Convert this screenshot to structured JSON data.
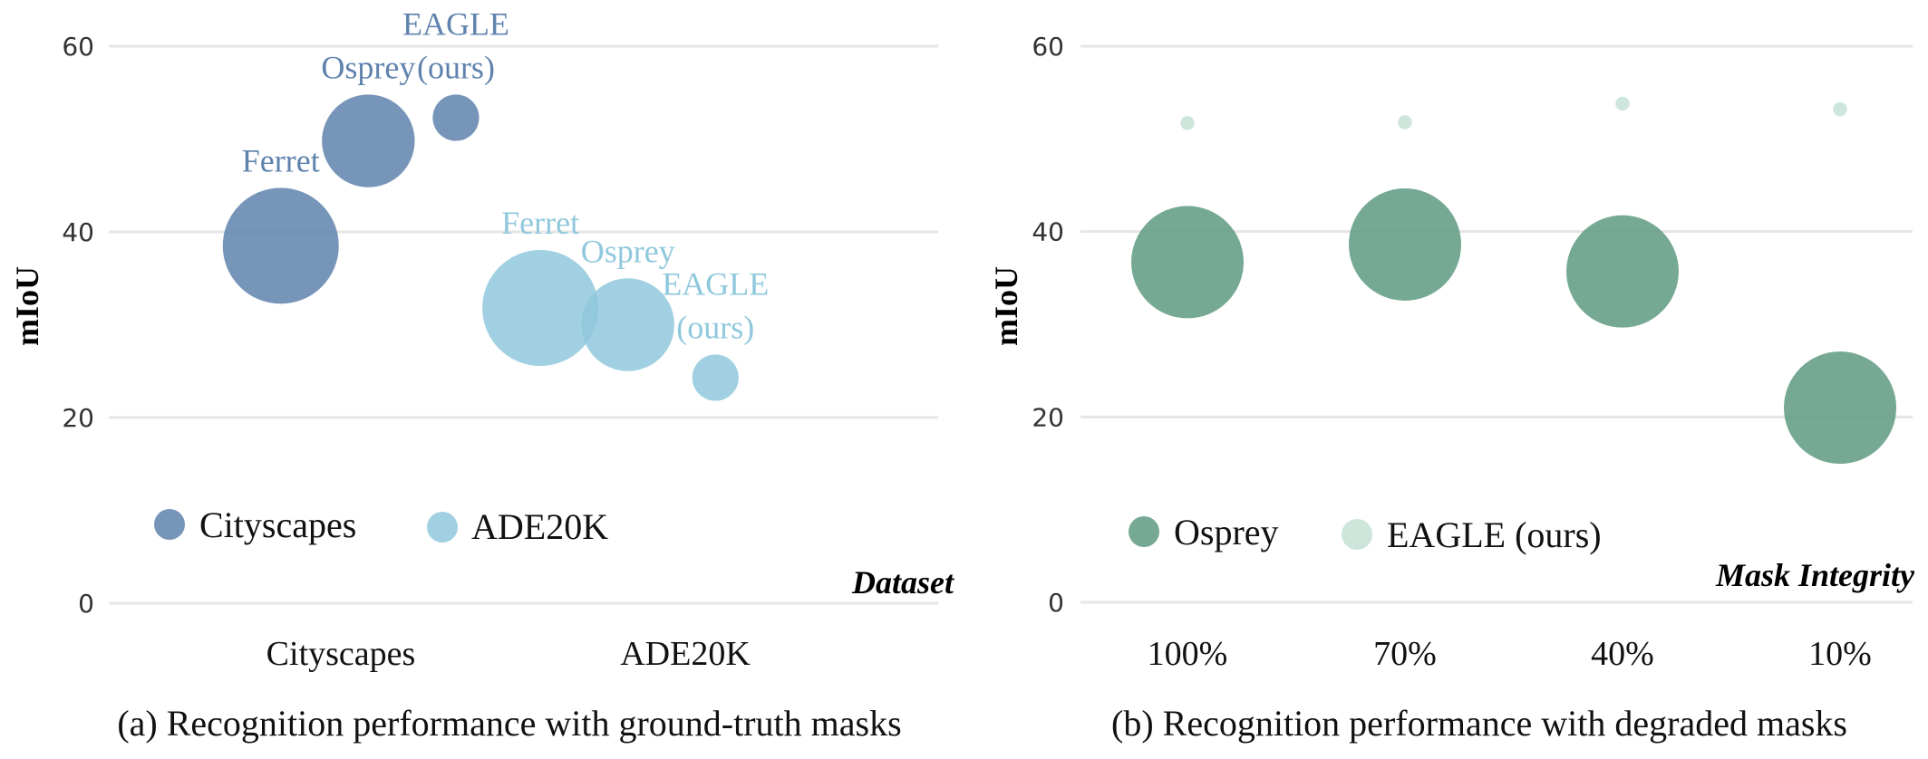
{
  "chart_data": [
    {
      "type": "scatter",
      "subtype": "bubble",
      "caption": "(a) Recognition performance with ground-truth masks",
      "ylabel": "mIoU",
      "xlabel": "Dataset",
      "ylim": [
        0,
        60
      ],
      "yticks": [
        "0",
        "20",
        "40",
        "60"
      ],
      "categories": [
        "Cityscapes",
        "ADE20K"
      ],
      "grid": true,
      "legend_position": "bottom-left",
      "series": [
        {
          "name": "Cityscapes",
          "color": "#5f83ad",
          "points": [
            {
              "label": "Ferret",
              "x": 0.55,
              "y": 38.5,
              "size": 1.0
            },
            {
              "label": "Osprey",
              "x": 0.83,
              "y": 49.8,
              "size": 0.8
            },
            {
              "label": "EAGLE (ours)",
              "label_lines": [
                "EAGLE",
                "(ours)"
              ],
              "x": 1.11,
              "y": 52.3,
              "size": 0.4
            }
          ]
        },
        {
          "name": "ADE20K",
          "color": "#8fc8dc",
          "points": [
            {
              "label": "Ferret",
              "x": 1.38,
              "y": 31.8,
              "size": 1.0
            },
            {
              "label": "Osprey",
              "x": 1.66,
              "y": 30.0,
              "size": 0.8
            },
            {
              "label": "EAGLE (ours)",
              "label_lines": [
                "EAGLE",
                "(ours)"
              ],
              "x": 1.94,
              "y": 24.3,
              "size": 0.4
            }
          ]
        }
      ]
    },
    {
      "type": "scatter",
      "subtype": "bubble",
      "caption": "(b) Recognition performance with degraded masks",
      "ylabel": "mIoU",
      "xlabel": "Mask Integrity",
      "ylim": [
        0,
        60
      ],
      "yticks": [
        "0",
        "20",
        "40",
        "60"
      ],
      "categories": [
        "100%",
        "70%",
        "40%",
        "10%"
      ],
      "grid": true,
      "legend_position": "bottom-left",
      "series": [
        {
          "name": "Osprey",
          "color": "#5e9a80",
          "values": [
            36.7,
            38.6,
            35.7,
            21.0
          ],
          "size": 1.0
        },
        {
          "name": "EAGLE (ours)",
          "color": "#cde5da",
          "values": [
            51.7,
            51.8,
            53.8,
            53.2
          ],
          "size": 0.25
        }
      ]
    }
  ]
}
